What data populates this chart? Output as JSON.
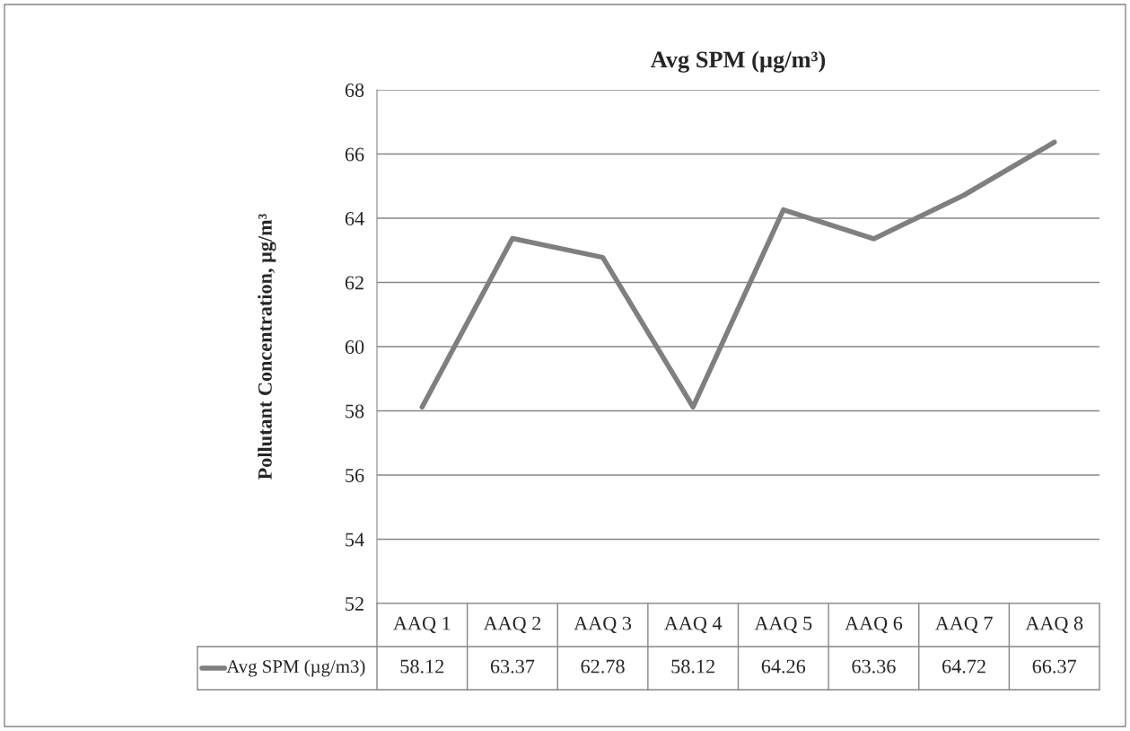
{
  "chart_data": {
    "type": "line",
    "title": "Avg SPM (µg/m³)",
    "ylabel": "Pollutant Concentration, µg/m³",
    "categories": [
      "AAQ 1",
      "AAQ 2",
      "AAQ 3",
      "AAQ 4",
      "AAQ 5",
      "AAQ 6",
      "AAQ 7",
      "AAQ 8"
    ],
    "series": [
      {
        "name": "Avg SPM (µg/m3)",
        "color": "#7f7f7f",
        "values": [
          58.12,
          63.37,
          62.78,
          58.12,
          64.26,
          63.36,
          64.72,
          66.37
        ]
      }
    ],
    "ylim": [
      52,
      68
    ],
    "yticks": [
      52,
      54,
      56,
      58,
      60,
      62,
      64,
      66,
      68
    ],
    "grid": "y",
    "legend": "bottom",
    "data_labels": true,
    "line_style": "solid"
  }
}
